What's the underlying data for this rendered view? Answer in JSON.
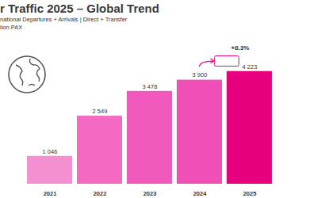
{
  "chart_data": {
    "type": "bar",
    "title": "r Traffic 2025 – Global Trend",
    "subtitle": "national Departures + Arrivals | Direct + Transfer",
    "ylabel": "lion PAX",
    "categories": [
      "2021",
      "2022",
      "2023",
      "2024",
      "2025"
    ],
    "values": [
      1046,
      2549,
      3478,
      3900,
      4223
    ],
    "value_labels": [
      "1 046",
      "2 549",
      "3 478",
      "3 900",
      "4 223"
    ],
    "colors": [
      "#f490cf",
      "#f46ac3",
      "#f15abc",
      "#ef4fb7",
      "#e6007e"
    ],
    "ylim": [
      0,
      4600
    ],
    "yticks": [],
    "grid": false,
    "data_labels": true,
    "tick_labels": "x",
    "annotations": [
      {
        "text": "+8.3%",
        "from": "2024",
        "to": "2025"
      }
    ]
  }
}
